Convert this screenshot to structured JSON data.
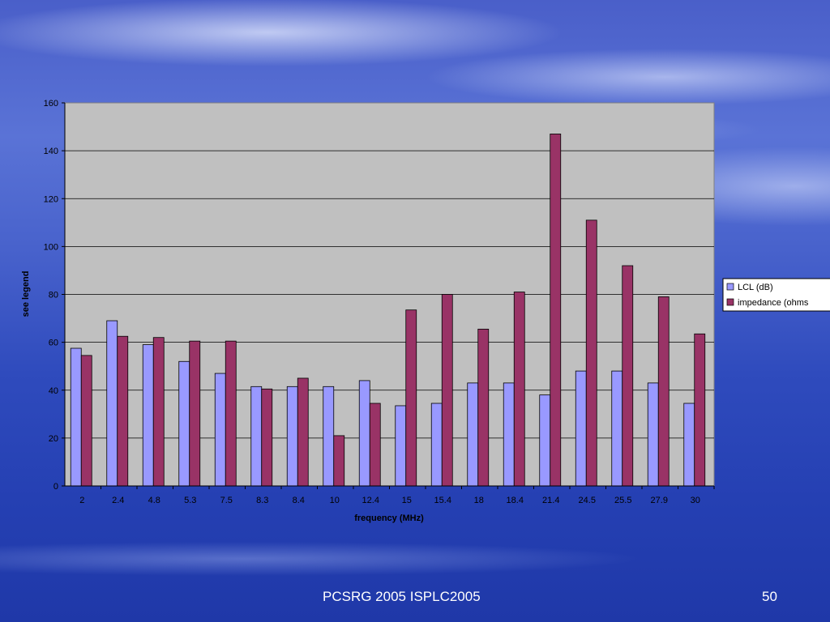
{
  "slide": {
    "footer": "PCSRG 2005 ISPLC2005",
    "page_number": "50"
  },
  "colors": {
    "plot_area": "#c0c0c0",
    "lcl": "#9999ff",
    "impedance": "#993366"
  },
  "chart_data": {
    "type": "bar",
    "title": "",
    "xlabel": "frequency (MHz)",
    "ylabel": "see legend",
    "ylim": [
      0,
      160
    ],
    "yticks": [
      0,
      20,
      40,
      60,
      80,
      100,
      120,
      140,
      160
    ],
    "grid": true,
    "legend_position": "right",
    "categories": [
      "2",
      "2.4",
      "4.8",
      "5.3",
      "7.5",
      "8.3",
      "8.4",
      "10",
      "12.4",
      "15",
      "15.4",
      "18",
      "18.4",
      "21.4",
      "24.5",
      "25.5",
      "27.9",
      "30"
    ],
    "series": [
      {
        "name": "LCL (dB)",
        "color": "#9999ff",
        "values": [
          57.5,
          69,
          59,
          52,
          47,
          41.5,
          41.5,
          41.5,
          44,
          33.5,
          34.5,
          43,
          43,
          38,
          48,
          48,
          43,
          34.5
        ]
      },
      {
        "name": "impedance (ohms",
        "color": "#993366",
        "values": [
          54.5,
          62.5,
          62,
          60.5,
          60.5,
          40.5,
          45,
          21,
          34.5,
          73.5,
          80,
          65.5,
          81,
          147,
          111,
          92,
          79,
          63.5
        ]
      }
    ]
  }
}
